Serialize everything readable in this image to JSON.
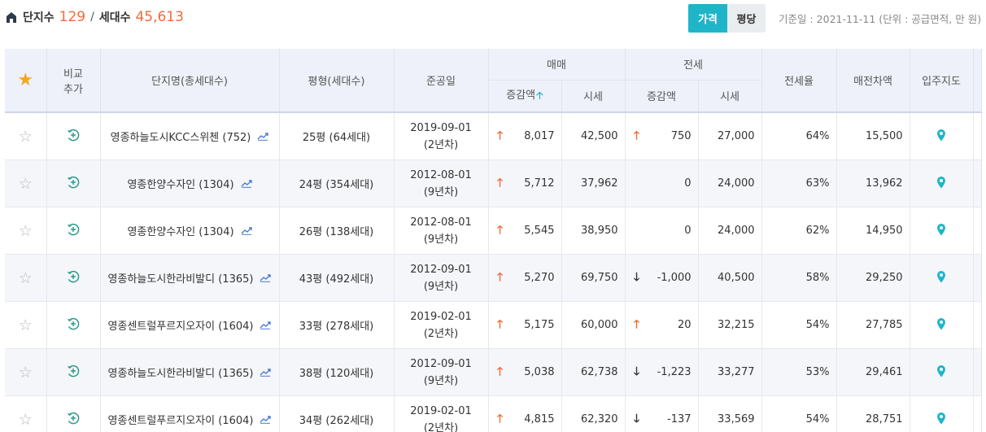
{
  "summary": {
    "complex_label": "단지수",
    "complex_count": "129",
    "separator": "/",
    "household_label": "세대수",
    "household_count": "45,613"
  },
  "toggle": {
    "price_label": "가격",
    "pyeong_label": "평당",
    "active": "가격"
  },
  "basis_text": "기준일 : 2021-11-11 (단위 : 공급면적, 만 원)",
  "colors": {
    "accent": "#1fb5c8",
    "up": "#f26b3a",
    "star": "#f5a623",
    "pin": "#1fb5c8"
  },
  "header": {
    "compare_line1": "비교",
    "compare_line2": "추가",
    "complex_name": "단지명(총세대수)",
    "area": "평형(세대수)",
    "completion": "준공일",
    "sale": "매매",
    "jeonse": "전세",
    "change": "증감액",
    "price": "시세",
    "jeonse_ratio": "전세율",
    "gap": "매전차액",
    "map": "입주지도"
  },
  "rows": [
    {
      "name": "영종하늘도시KCC스위첸 (752)",
      "area": "25평 (64세대)",
      "date": "2019-09-01",
      "age": "(2년차)",
      "sale_dir": "up",
      "sale_change": "8,017",
      "sale_price": "42,500",
      "jeonse_dir": "up",
      "jeonse_change": "750",
      "jeonse_price": "27,000",
      "ratio": "64%",
      "gap": "15,500"
    },
    {
      "name": "영종한양수자인 (1304)",
      "area": "24평 (354세대)",
      "date": "2012-08-01",
      "age": "(9년차)",
      "sale_dir": "up",
      "sale_change": "5,712",
      "sale_price": "37,962",
      "jeonse_dir": "none",
      "jeonse_change": "0",
      "jeonse_price": "24,000",
      "ratio": "63%",
      "gap": "13,962"
    },
    {
      "name": "영종한양수자인 (1304)",
      "area": "26평 (138세대)",
      "date": "2012-08-01",
      "age": "(9년차)",
      "sale_dir": "up",
      "sale_change": "5,545",
      "sale_price": "38,950",
      "jeonse_dir": "none",
      "jeonse_change": "0",
      "jeonse_price": "24,000",
      "ratio": "62%",
      "gap": "14,950"
    },
    {
      "name": "영종하늘도시한라비발디 (1365)",
      "area": "43평 (492세대)",
      "date": "2012-09-01",
      "age": "(9년차)",
      "sale_dir": "up",
      "sale_change": "5,270",
      "sale_price": "69,750",
      "jeonse_dir": "down",
      "jeonse_change": "-1,000",
      "jeonse_price": "40,500",
      "ratio": "58%",
      "gap": "29,250"
    },
    {
      "name": "영종센트럴푸르지오자이 (1604)",
      "area": "33평 (278세대)",
      "date": "2019-02-01",
      "age": "(2년차)",
      "sale_dir": "up",
      "sale_change": "5,175",
      "sale_price": "60,000",
      "jeonse_dir": "up",
      "jeonse_change": "20",
      "jeonse_price": "32,215",
      "ratio": "54%",
      "gap": "27,785"
    },
    {
      "name": "영종하늘도시한라비발디 (1365)",
      "area": "38평 (120세대)",
      "date": "2012-09-01",
      "age": "(9년차)",
      "sale_dir": "up",
      "sale_change": "5,038",
      "sale_price": "62,738",
      "jeonse_dir": "down",
      "jeonse_change": "-1,223",
      "jeonse_price": "33,277",
      "ratio": "53%",
      "gap": "29,461"
    },
    {
      "name": "영종센트럴푸르지오자이 (1604)",
      "area": "34평 (262세대)",
      "date": "2019-02-01",
      "age": "(2년차)",
      "sale_dir": "up",
      "sale_change": "4,815",
      "sale_price": "62,320",
      "jeonse_dir": "down",
      "jeonse_change": "-137",
      "jeonse_price": "33,569",
      "ratio": "54%",
      "gap": "28,751"
    }
  ]
}
